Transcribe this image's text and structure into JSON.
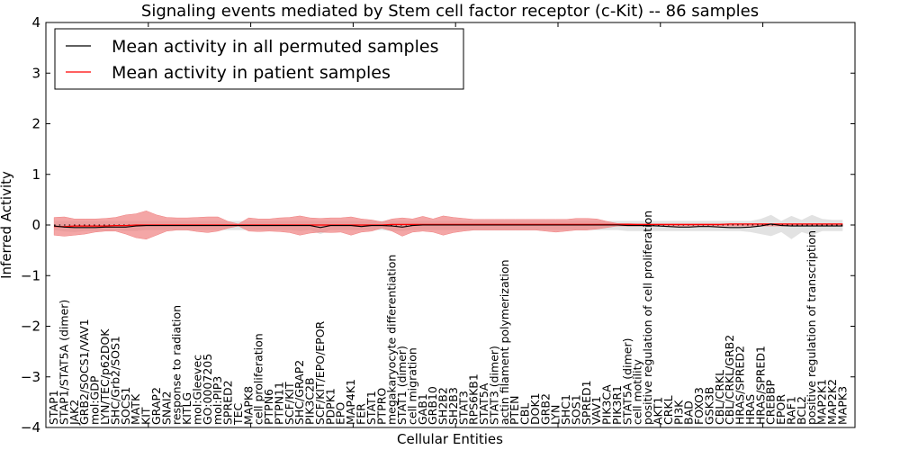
{
  "chart_data": {
    "type": "line",
    "title": "Signaling events mediated by Stem cell factor receptor (c-Kit) -- 86 samples",
    "xlabel": "Cellular Entities",
    "ylabel": "Inferred Activity",
    "ylim": [
      -4,
      4
    ],
    "xlim": [
      0,
      79
    ],
    "yticks": [
      -4,
      -3,
      -2,
      -1,
      0,
      1,
      2,
      3,
      4
    ],
    "ytick_labels": [
      "−4",
      "−3",
      "−2",
      "−1",
      "0",
      "1",
      "2",
      "3",
      "4"
    ],
    "xticks_minor": [
      10,
      20,
      30,
      40,
      50,
      60,
      70
    ],
    "grid": false,
    "legend_position": "top-left",
    "legend": [
      {
        "label": "Mean activity in all permuted samples",
        "color": "#000000"
      },
      {
        "label": "Mean activity in patient samples",
        "color": "#ff0000"
      }
    ],
    "colors": {
      "patient_line": "#ff0000",
      "patient_band": "#f08080",
      "permuted_line": "#000000",
      "permuted_band": "#d3d3d3"
    },
    "categories": [
      "STAP1",
      "STAP1/STAT5A (dimer)",
      "JAK2",
      "GRB2/SOCS1/VAV1",
      "mol:GDP",
      "LYN/TEC/p62DOK",
      "SHC/Grb2/SOS1",
      "SOCS1",
      "MATK",
      "KIT",
      "GRAP2",
      "SNAI2",
      "response to radiation",
      "KITLG",
      "mol:Gleevec",
      "GO:0007205",
      "mol:PIP3",
      "SPRED2",
      "TEC",
      "MAPK8",
      "cell proliferation",
      "PTPN6",
      "PTPN11",
      "SCF/KIT",
      "SHC/GRAP2",
      "PIK3C2B",
      "SCF/KIT/EPO/EPOR",
      "PDPK1",
      "EPO",
      "MAP4K1",
      "FER",
      "STAT1",
      "PTPRO",
      "megakaryocyte differentiation",
      "STAT1 (dimer)",
      "cell migration",
      "GAB1",
      "GRB10",
      "SH2B2",
      "SH2B3",
      "STAT3",
      "RPS6KB1",
      "STAT5A",
      "STAT3 (dimer)",
      "actin filament polymerization",
      "PTEN",
      "CBL",
      "DOK1",
      "GRB2",
      "LYN",
      "SHC1",
      "SOS1",
      "SPRED1",
      "VAV1",
      "PIK3CA",
      "PIK3R1",
      "STAT5A (dimer)",
      "cell motility",
      "positive regulation of cell proliferation",
      "AKT1",
      "CRKL",
      "PI3K",
      "BAD",
      "FOXO3",
      "GSK3B",
      "CBL/CRKL",
      "CBL/CRKL/GRB2",
      "HRAS/SPRED2",
      "HRAS",
      "HRAS/SPRED1",
      "CREBBP",
      "EPOR",
      "RAF1",
      "BCL2",
      "positive regulation of transcription",
      "MAP2K1",
      "MAP2K2",
      "MAPK3"
    ],
    "series": [
      {
        "name": "Mean activity in patient samples",
        "values": [
          -0.03,
          -0.03,
          -0.02,
          -0.02,
          -0.02,
          -0.02,
          -0.01,
          -0.01,
          0.0,
          0.0,
          0.0,
          0.0,
          0.0,
          0.0,
          0.0,
          0.0,
          0.0,
          0.0,
          0.0,
          0.0,
          0.0,
          0.0,
          0.0,
          0.0,
          0.0,
          0.0,
          0.0,
          0.0,
          0.0,
          0.0,
          0.0,
          0.0,
          0.0,
          0.01,
          0.01,
          0.01,
          0.01,
          0.01,
          0.01,
          0.01,
          0.01,
          0.01,
          0.01,
          0.01,
          0.01,
          0.01,
          0.01,
          0.01,
          0.01,
          0.01,
          0.01,
          0.01,
          0.01,
          0.01,
          0.01,
          0.01,
          0.01,
          0.01,
          0.01,
          0.01,
          0.01,
          0.01,
          0.01,
          0.01,
          0.01,
          0.01,
          0.02,
          0.02,
          0.02,
          0.02,
          0.02,
          0.02,
          0.02,
          0.02,
          0.02,
          0.02,
          0.02,
          0.02
        ],
        "upper": [
          0.15,
          0.16,
          0.12,
          0.12,
          0.12,
          0.13,
          0.15,
          0.2,
          0.22,
          0.28,
          0.2,
          0.15,
          0.14,
          0.14,
          0.15,
          0.16,
          0.16,
          0.07,
          0.02,
          0.14,
          0.12,
          0.12,
          0.14,
          0.15,
          0.18,
          0.14,
          0.13,
          0.14,
          0.14,
          0.16,
          0.12,
          0.1,
          0.06,
          0.12,
          0.14,
          0.12,
          0.17,
          0.12,
          0.18,
          0.15,
          0.13,
          0.11,
          0.11,
          0.11,
          0.11,
          0.11,
          0.11,
          0.11,
          0.11,
          0.11,
          0.11,
          0.13,
          0.13,
          0.12,
          0.07,
          0.03,
          0.03,
          0.02,
          0.02,
          0.02,
          0.02,
          0.02,
          0.02,
          0.02,
          0.02,
          0.02,
          0.02,
          0.02,
          0.02,
          0.02,
          0.02,
          0.02,
          0.02,
          0.02,
          0.02,
          0.02,
          0.02,
          0.02
        ],
        "lower": [
          -0.2,
          -0.22,
          -0.2,
          -0.18,
          -0.14,
          -0.12,
          -0.12,
          -0.18,
          -0.25,
          -0.28,
          -0.2,
          -0.12,
          -0.1,
          -0.1,
          -0.13,
          -0.15,
          -0.12,
          -0.06,
          -0.02,
          -0.12,
          -0.13,
          -0.12,
          -0.13,
          -0.15,
          -0.2,
          -0.16,
          -0.14,
          -0.15,
          -0.14,
          -0.2,
          -0.14,
          -0.12,
          -0.06,
          -0.12,
          -0.22,
          -0.14,
          -0.12,
          -0.14,
          -0.2,
          -0.15,
          -0.12,
          -0.1,
          -0.1,
          -0.1,
          -0.1,
          -0.1,
          -0.1,
          -0.1,
          -0.12,
          -0.14,
          -0.12,
          -0.1,
          -0.1,
          -0.08,
          -0.05,
          -0.02,
          -0.02,
          -0.02,
          -0.02,
          -0.02,
          -0.02,
          -0.02,
          -0.02,
          -0.02,
          -0.02,
          -0.02,
          -0.02,
          -0.02,
          -0.02,
          -0.02,
          -0.02,
          -0.02,
          -0.02,
          -0.02,
          -0.02,
          -0.02,
          -0.02,
          -0.02
        ]
      },
      {
        "name": "Mean activity in all permuted samples",
        "values": [
          -0.02,
          -0.04,
          -0.05,
          -0.05,
          -0.05,
          -0.04,
          -0.04,
          -0.04,
          -0.02,
          -0.01,
          -0.01,
          -0.01,
          -0.01,
          -0.01,
          -0.01,
          -0.01,
          -0.01,
          -0.01,
          -0.01,
          -0.01,
          -0.01,
          -0.01,
          -0.01,
          -0.01,
          -0.01,
          -0.01,
          -0.05,
          -0.01,
          -0.01,
          -0.01,
          -0.03,
          -0.01,
          -0.01,
          -0.02,
          -0.04,
          -0.01,
          0.0,
          0.0,
          0.0,
          0.0,
          0.0,
          0.0,
          0.0,
          0.0,
          0.0,
          0.0,
          0.0,
          0.0,
          0.0,
          0.0,
          0.0,
          0.0,
          0.0,
          0.0,
          0.0,
          0.0,
          -0.01,
          -0.01,
          -0.01,
          -0.02,
          -0.03,
          -0.04,
          -0.04,
          -0.03,
          -0.03,
          -0.04,
          -0.05,
          -0.05,
          -0.04,
          -0.02,
          0.02,
          -0.01,
          -0.02,
          -0.02,
          -0.02,
          -0.02,
          -0.02,
          -0.02
        ],
        "upper": [
          0.08,
          0.08,
          0.08,
          0.08,
          0.08,
          0.08,
          0.08,
          0.08,
          0.08,
          0.08,
          0.08,
          0.08,
          0.08,
          0.08,
          0.08,
          0.08,
          0.08,
          0.08,
          0.08,
          0.08,
          0.08,
          0.08,
          0.08,
          0.08,
          0.08,
          0.08,
          0.08,
          0.08,
          0.08,
          0.08,
          0.08,
          0.08,
          0.08,
          0.08,
          0.08,
          0.08,
          0.08,
          0.08,
          0.08,
          0.08,
          0.08,
          0.08,
          0.08,
          0.08,
          0.08,
          0.08,
          0.08,
          0.08,
          0.08,
          0.08,
          0.08,
          0.08,
          0.08,
          0.08,
          0.08,
          0.08,
          0.08,
          0.08,
          0.08,
          0.08,
          0.08,
          0.08,
          0.08,
          0.08,
          0.08,
          0.08,
          0.08,
          0.08,
          0.08,
          0.12,
          0.2,
          0.08,
          0.18,
          0.1,
          0.2,
          0.12,
          0.1,
          0.1
        ],
        "lower": [
          -0.1,
          -0.13,
          -0.14,
          -0.12,
          -0.12,
          -0.11,
          -0.1,
          -0.12,
          -0.12,
          -0.1,
          -0.1,
          -0.1,
          -0.1,
          -0.1,
          -0.1,
          -0.1,
          -0.1,
          -0.1,
          -0.1,
          -0.1,
          -0.1,
          -0.1,
          -0.1,
          -0.1,
          -0.12,
          -0.1,
          -0.18,
          -0.1,
          -0.1,
          -0.1,
          -0.1,
          -0.1,
          -0.1,
          -0.12,
          -0.12,
          -0.1,
          -0.1,
          -0.1,
          -0.1,
          -0.1,
          -0.1,
          -0.1,
          -0.1,
          -0.1,
          -0.1,
          -0.1,
          -0.1,
          -0.1,
          -0.1,
          -0.1,
          -0.1,
          -0.1,
          -0.1,
          -0.1,
          -0.1,
          -0.1,
          -0.12,
          -0.12,
          -0.12,
          -0.12,
          -0.12,
          -0.12,
          -0.12,
          -0.12,
          -0.12,
          -0.12,
          -0.12,
          -0.12,
          -0.14,
          -0.18,
          -0.22,
          -0.14,
          -0.28,
          -0.14,
          -0.2,
          -0.12,
          -0.12,
          -0.12
        ]
      }
    ]
  }
}
